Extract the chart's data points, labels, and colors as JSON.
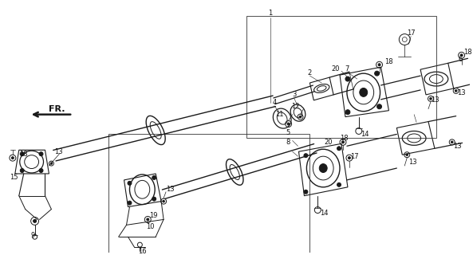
{
  "bg_color": "#ffffff",
  "line_color": "#1a1a1a",
  "text_color": "#111111",
  "fig_width": 5.93,
  "fig_height": 3.2,
  "dpi": 100
}
